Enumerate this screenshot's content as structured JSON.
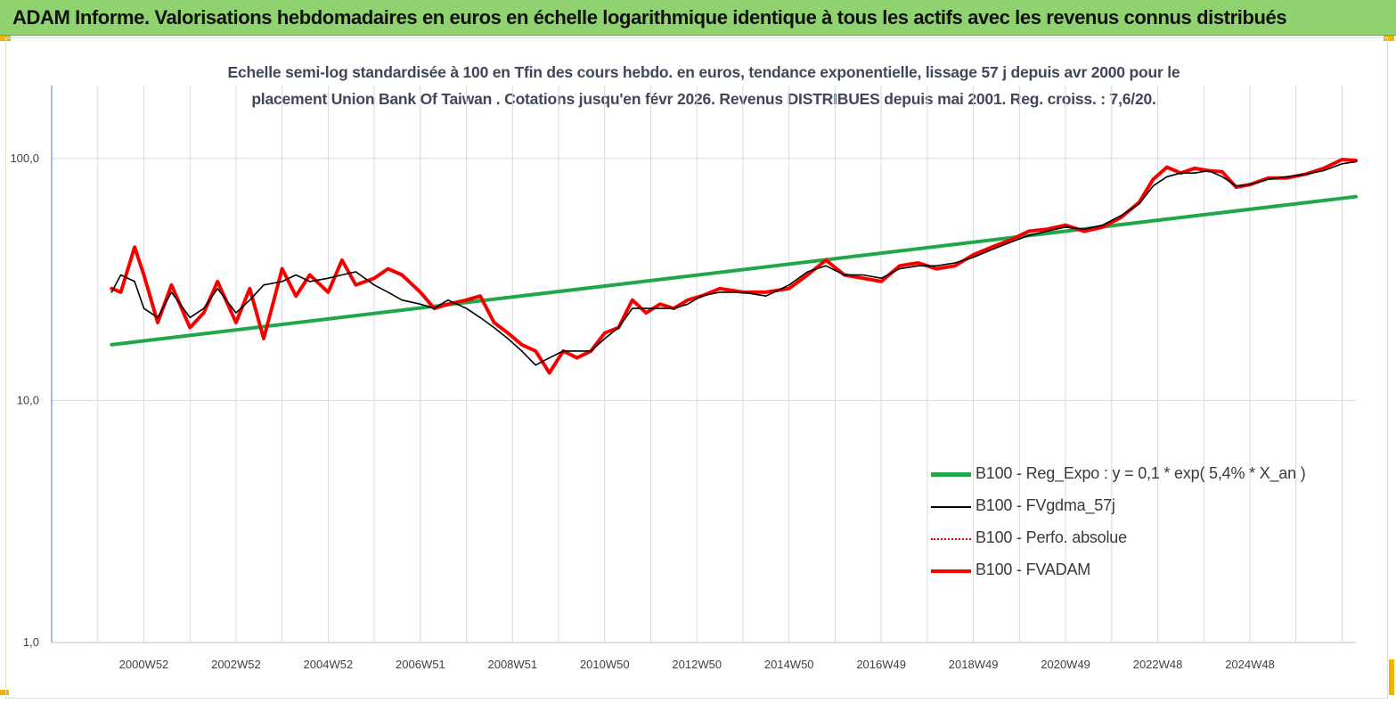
{
  "banner": {
    "title": "ADAM Informe. Valorisations hebdomadaires en euros en échelle logarithmique identique à tous les actifs avec les revenus connus distribués",
    "color": "#8fd26f"
  },
  "chart_data": {
    "type": "line",
    "title_lines": [
      "Echelle semi-log standardisée à 100 en Tfin des cours hebdo. en euros, tendance exponentielle, lissage 57 j depuis avr 2000 pour le",
      "placement Union Bank Of Taiwan . Cotations jusqu'en févr 2026. Revenus DISTRIBUES depuis mai 2001. Reg. croiss. : 7,6/20."
    ],
    "y_scale": "log",
    "ylim": [
      1,
      200
    ],
    "y_ticks": [
      {
        "value": 1,
        "label": "1,0"
      },
      {
        "value": 10,
        "label": "10,0"
      },
      {
        "value": 100,
        "label": "100,0"
      }
    ],
    "x_range": [
      1998.0,
      2026.3
    ],
    "x_ticks": [
      {
        "value": 2000.0,
        "label": "2000W52"
      },
      {
        "value": 2002.0,
        "label": "2002W52"
      },
      {
        "value": 2004.0,
        "label": "2004W52"
      },
      {
        "value": 2006.0,
        "label": "2006W51"
      },
      {
        "value": 2008.0,
        "label": "2008W51"
      },
      {
        "value": 2010.0,
        "label": "2010W50"
      },
      {
        "value": 2012.0,
        "label": "2012W50"
      },
      {
        "value": 2014.0,
        "label": "2014W50"
      },
      {
        "value": 2016.0,
        "label": "2016W49"
      },
      {
        "value": 2018.0,
        "label": "2018W49"
      },
      {
        "value": 2020.0,
        "label": "2020W49"
      },
      {
        "value": 2022.0,
        "label": "2022W48"
      },
      {
        "value": 2024.0,
        "label": "2024W48"
      }
    ],
    "grid": true,
    "legend_position": "bottom-right",
    "series": [
      {
        "name": "B100 - Reg_Expo : y = 0,1 * exp( 5,4% *  X_an )",
        "color": "#1fa84a",
        "style": "solid-thick",
        "x": [
          1999.3,
          2026.3
        ],
        "y": [
          17.0,
          69.5
        ]
      },
      {
        "name": "B100 - FVgdma_57j",
        "color": "#000000",
        "style": "solid-thin",
        "x": [
          1999.3,
          1999.5,
          1999.8,
          2000.0,
          2000.3,
          2000.6,
          2001.0,
          2001.3,
          2001.6,
          2002.0,
          2002.3,
          2002.6,
          2003.0,
          2003.3,
          2003.6,
          2004.0,
          2004.3,
          2004.6,
          2005.0,
          2005.3,
          2005.6,
          2006.0,
          2006.3,
          2006.6,
          2007.0,
          2007.3,
          2007.6,
          2007.9,
          2008.2,
          2008.5,
          2008.8,
          2009.1,
          2009.4,
          2009.7,
          2010.0,
          2010.3,
          2010.6,
          2010.9,
          2011.2,
          2011.5,
          2011.8,
          2012.1,
          2012.5,
          2013.0,
          2013.5,
          2014.0,
          2014.4,
          2014.8,
          2015.2,
          2015.6,
          2016.0,
          2016.4,
          2016.8,
          2017.2,
          2017.6,
          2018.0,
          2018.4,
          2018.8,
          2019.2,
          2019.6,
          2020.0,
          2020.4,
          2020.8,
          2021.2,
          2021.6,
          2021.9,
          2022.2,
          2022.5,
          2022.8,
          2023.1,
          2023.4,
          2023.7,
          2024.0,
          2024.4,
          2024.8,
          2025.2,
          2025.6,
          2026.0,
          2026.3
        ],
        "y": [
          28,
          33,
          31,
          24,
          22,
          28,
          22,
          24,
          29,
          23,
          26,
          30,
          31,
          33,
          31,
          32,
          33,
          34,
          30,
          28,
          26,
          25,
          24,
          26,
          24,
          22,
          20,
          18,
          16,
          14,
          15,
          16,
          16,
          16,
          18,
          20,
          24,
          24,
          24,
          24,
          25,
          27,
          28,
          28,
          27,
          30,
          34,
          36,
          33,
          33,
          32,
          35,
          36,
          36,
          37,
          39,
          42,
          45,
          48,
          50,
          52,
          51,
          53,
          58,
          65,
          77,
          84,
          87,
          87,
          89,
          84,
          77,
          78,
          82,
          84,
          86,
          89,
          95,
          97
        ]
      },
      {
        "name": "B100 - Perfo. absolue",
        "color": "#e00000",
        "style": "dotted",
        "x": [
          1999.3,
          1999.5,
          1999.8,
          2000.0,
          2000.3,
          2000.6,
          2001.0,
          2001.3,
          2001.6,
          2002.0,
          2002.3,
          2002.6,
          2003.0,
          2003.3,
          2003.6,
          2004.0,
          2004.3,
          2004.6,
          2005.0,
          2005.3,
          2005.6,
          2006.0,
          2006.3,
          2006.6,
          2007.0,
          2007.3,
          2007.6,
          2007.9,
          2008.2,
          2008.5,
          2008.8,
          2009.1,
          2009.4,
          2009.7,
          2010.0,
          2010.3,
          2010.6,
          2010.9,
          2011.2,
          2011.5,
          2011.8,
          2012.1,
          2012.5,
          2013.0,
          2013.5,
          2014.0,
          2014.4,
          2014.8,
          2015.2,
          2015.6,
          2016.0,
          2016.4,
          2016.8,
          2017.2,
          2017.6,
          2018.0,
          2018.4,
          2018.8,
          2019.2,
          2019.6,
          2020.0,
          2020.4,
          2020.8,
          2021.2,
          2021.6,
          2021.9,
          2022.2,
          2022.5,
          2022.8,
          2023.1,
          2023.4,
          2023.7,
          2024.0,
          2024.4,
          2024.8,
          2025.2,
          2025.6,
          2026.0,
          2026.3
        ],
        "y": [
          29,
          28,
          43,
          33,
          21,
          30,
          20,
          23,
          31,
          21,
          29,
          18,
          35,
          27,
          33,
          28,
          38,
          30,
          32,
          35,
          33,
          28,
          24,
          25,
          26,
          27,
          21,
          19,
          17,
          16,
          13,
          16,
          15,
          16,
          19,
          20,
          26,
          23,
          25,
          24,
          26,
          27,
          29,
          28,
          28,
          29,
          33,
          38,
          33,
          32,
          31,
          36,
          37,
          35,
          36,
          40,
          43,
          46,
          50,
          51,
          53,
          50,
          52,
          57,
          66,
          82,
          92,
          87,
          91,
          89,
          88,
          76,
          78,
          83,
          83,
          86,
          91,
          99,
          98
        ]
      },
      {
        "name": "B100 - FVADAM",
        "color": "#ff0000",
        "style": "solid-thick",
        "x": [
          1999.3,
          1999.5,
          1999.8,
          2000.0,
          2000.3,
          2000.6,
          2001.0,
          2001.3,
          2001.6,
          2002.0,
          2002.3,
          2002.6,
          2003.0,
          2003.3,
          2003.6,
          2004.0,
          2004.3,
          2004.6,
          2005.0,
          2005.3,
          2005.6,
          2006.0,
          2006.3,
          2006.6,
          2007.0,
          2007.3,
          2007.6,
          2007.9,
          2008.2,
          2008.5,
          2008.8,
          2009.1,
          2009.4,
          2009.7,
          2010.0,
          2010.3,
          2010.6,
          2010.9,
          2011.2,
          2011.5,
          2011.8,
          2012.1,
          2012.5,
          2013.0,
          2013.5,
          2014.0,
          2014.4,
          2014.8,
          2015.2,
          2015.6,
          2016.0,
          2016.4,
          2016.8,
          2017.2,
          2017.6,
          2018.0,
          2018.4,
          2018.8,
          2019.2,
          2019.6,
          2020.0,
          2020.4,
          2020.8,
          2021.2,
          2021.6,
          2021.9,
          2022.2,
          2022.5,
          2022.8,
          2023.1,
          2023.4,
          2023.7,
          2024.0,
          2024.4,
          2024.8,
          2025.2,
          2025.6,
          2026.0,
          2026.3
        ],
        "y": [
          29,
          28,
          43,
          33,
          21,
          30,
          20,
          23,
          31,
          21,
          29,
          18,
          35,
          27,
          33,
          28,
          38,
          30,
          32,
          35,
          33,
          28,
          24,
          25,
          26,
          27,
          21,
          19,
          17,
          16,
          13,
          16,
          15,
          16,
          19,
          20,
          26,
          23,
          25,
          24,
          26,
          27,
          29,
          28,
          28,
          29,
          33,
          38,
          33,
          32,
          31,
          36,
          37,
          35,
          36,
          40,
          43,
          46,
          50,
          51,
          53,
          50,
          52,
          57,
          66,
          82,
          92,
          87,
          91,
          89,
          88,
          76,
          78,
          83,
          83,
          86,
          91,
          99,
          98
        ]
      }
    ]
  }
}
